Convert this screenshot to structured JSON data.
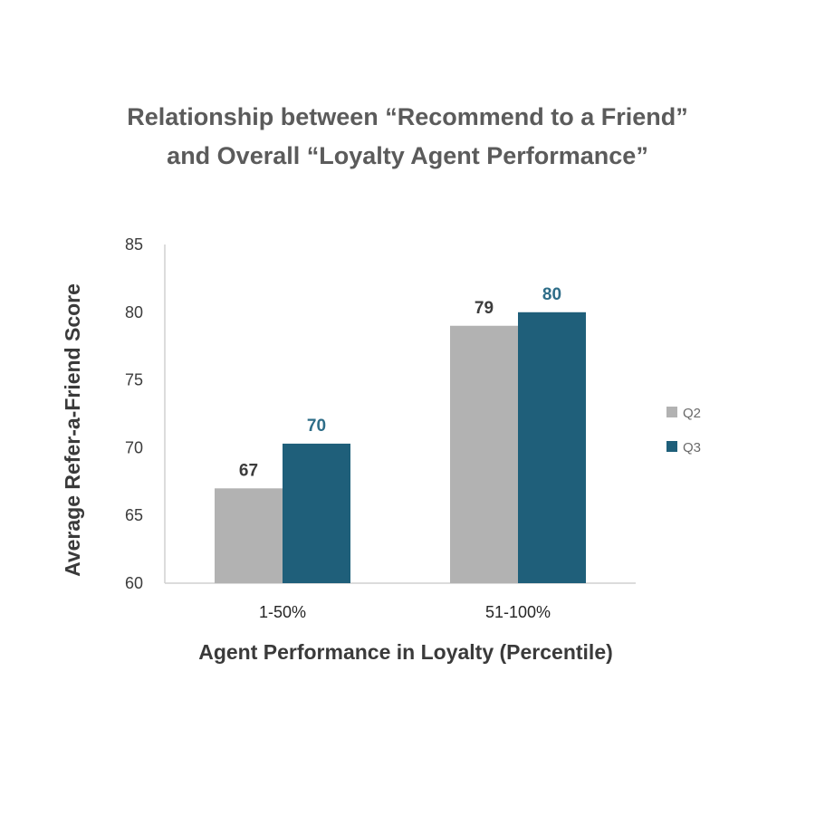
{
  "chart_data": {
    "type": "bar",
    "title_lines": [
      "Relationship between “Recommend to a Friend”",
      "and Overall “Loyalty Agent Performance”"
    ],
    "xlabel": "Agent Performance in Loyalty (Percentile)",
    "ylabel": "Average Refer-a-Friend Score",
    "categories": [
      "1-50%",
      "51-100%"
    ],
    "series": [
      {
        "name": "Q2",
        "values": [
          67,
          79
        ],
        "labels": [
          "67",
          "79"
        ],
        "color": "#b2b2b2",
        "label_color": "#3c3c3c"
      },
      {
        "name": "Q3",
        "values": [
          70.3,
          80
        ],
        "labels": [
          "70",
          "80"
        ],
        "color": "#1f5f7a",
        "label_color": "#2e6d88"
      }
    ],
    "ylim": [
      60,
      85
    ],
    "yticks": [
      "60",
      "65",
      "70",
      "75",
      "80",
      "85"
    ],
    "grid": false,
    "legend_position": "right"
  }
}
